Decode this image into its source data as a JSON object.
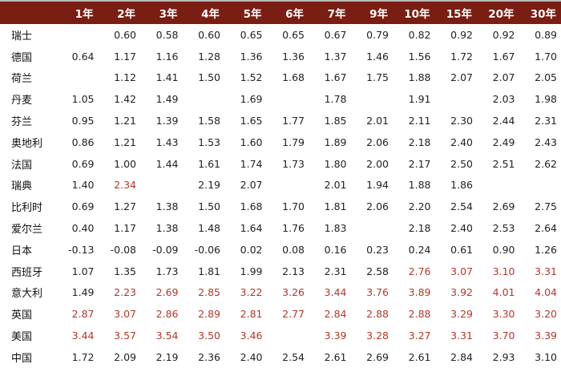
{
  "columns": [
    "1年",
    "2年",
    "3年",
    "4年",
    "5年",
    "6年",
    "7年",
    "9年",
    "10年",
    "15年",
    "20年",
    "30年"
  ],
  "rows": [
    {
      "country": "瑞士",
      "values": [
        "",
        "0.60",
        "0.58",
        "0.60",
        "0.65",
        "0.65",
        "0.67",
        "0.79",
        "0.82",
        "0.92",
        "0.92",
        "0.89"
      ],
      "red": []
    },
    {
      "country": "德国",
      "values": [
        "0.64",
        "1.17",
        "1.16",
        "1.28",
        "1.36",
        "1.36",
        "1.37",
        "1.46",
        "1.56",
        "1.72",
        "1.67",
        "1.70"
      ],
      "red": []
    },
    {
      "country": "荷兰",
      "values": [
        "",
        "1.12",
        "1.41",
        "1.50",
        "1.52",
        "1.68",
        "1.67",
        "1.75",
        "1.88",
        "2.07",
        "2.07",
        "2.05"
      ],
      "red": []
    },
    {
      "country": "丹麦",
      "values": [
        "1.05",
        "1.42",
        "1.49",
        "",
        "1.69",
        "",
        "1.78",
        "",
        "1.91",
        "",
        "2.03",
        "1.98"
      ],
      "red": []
    },
    {
      "country": "芬兰",
      "values": [
        "0.95",
        "1.21",
        "1.39",
        "1.58",
        "1.65",
        "1.77",
        "1.85",
        "2.01",
        "2.11",
        "2.30",
        "2.44",
        "2.31"
      ],
      "red": []
    },
    {
      "country": "奥地利",
      "values": [
        "0.86",
        "1.21",
        "1.43",
        "1.53",
        "1.60",
        "1.79",
        "1.89",
        "2.06",
        "2.18",
        "2.40",
        "2.49",
        "2.43"
      ],
      "red": []
    },
    {
      "country": "法国",
      "values": [
        "0.69",
        "1.00",
        "1.44",
        "1.61",
        "1.74",
        "1.73",
        "1.80",
        "2.00",
        "2.17",
        "2.50",
        "2.51",
        "2.62"
      ],
      "red": []
    },
    {
      "country": "瑞典",
      "values": [
        "1.40",
        "2.34",
        "",
        "2.19",
        "2.07",
        "",
        "2.01",
        "1.94",
        "1.88",
        "1.86",
        "",
        ""
      ],
      "red": [
        1
      ]
    },
    {
      "country": "比利时",
      "values": [
        "0.69",
        "1.27",
        "1.38",
        "1.50",
        "1.68",
        "1.70",
        "1.81",
        "2.06",
        "2.20",
        "2.54",
        "2.69",
        "2.75"
      ],
      "red": []
    },
    {
      "country": "爱尔兰",
      "values": [
        "0.40",
        "1.17",
        "1.38",
        "1.48",
        "1.64",
        "1.76",
        "1.83",
        "",
        "2.18",
        "2.40",
        "2.53",
        "2.64"
      ],
      "red": []
    },
    {
      "country": "日本",
      "values": [
        "-0.13",
        "-0.08",
        "-0.09",
        "-0.06",
        "0.02",
        "0.08",
        "0.16",
        "0.23",
        "0.24",
        "0.61",
        "0.90",
        "1.26"
      ],
      "red": []
    },
    {
      "country": "西班牙",
      "values": [
        "1.07",
        "1.35",
        "1.73",
        "1.81",
        "1.99",
        "2.13",
        "2.31",
        "2.58",
        "2.76",
        "3.07",
        "3.10",
        "3.31"
      ],
      "red": [
        8,
        9,
        10,
        11
      ]
    },
    {
      "country": "意大利",
      "values": [
        "1.49",
        "2.23",
        "2.69",
        "2.85",
        "3.22",
        "3.26",
        "3.44",
        "3.76",
        "3.89",
        "3.92",
        "4.01",
        "4.04"
      ],
      "red": [
        1,
        2,
        3,
        4,
        5,
        6,
        7,
        8,
        9,
        10,
        11
      ]
    },
    {
      "country": "英国",
      "values": [
        "2.87",
        "3.07",
        "2.86",
        "2.89",
        "2.81",
        "2.77",
        "2.84",
        "2.88",
        "2.88",
        "3.29",
        "3.30",
        "3.20"
      ],
      "red": [
        0,
        1,
        2,
        3,
        4,
        5,
        6,
        7,
        8,
        9,
        10,
        11
      ]
    },
    {
      "country": "美国",
      "values": [
        "3.44",
        "3.57",
        "3.54",
        "3.50",
        "3.46",
        "",
        "3.39",
        "3.28",
        "3.27",
        "3.31",
        "3.70",
        "3.39"
      ],
      "red": [
        0,
        1,
        2,
        3,
        4,
        6,
        7,
        8,
        9,
        10,
        11
      ]
    },
    {
      "country": "中国",
      "values": [
        "1.72",
        "2.09",
        "2.19",
        "2.36",
        "2.40",
        "2.54",
        "2.61",
        "2.69",
        "2.61",
        "2.84",
        "2.93",
        "3.10"
      ],
      "red": []
    }
  ]
}
